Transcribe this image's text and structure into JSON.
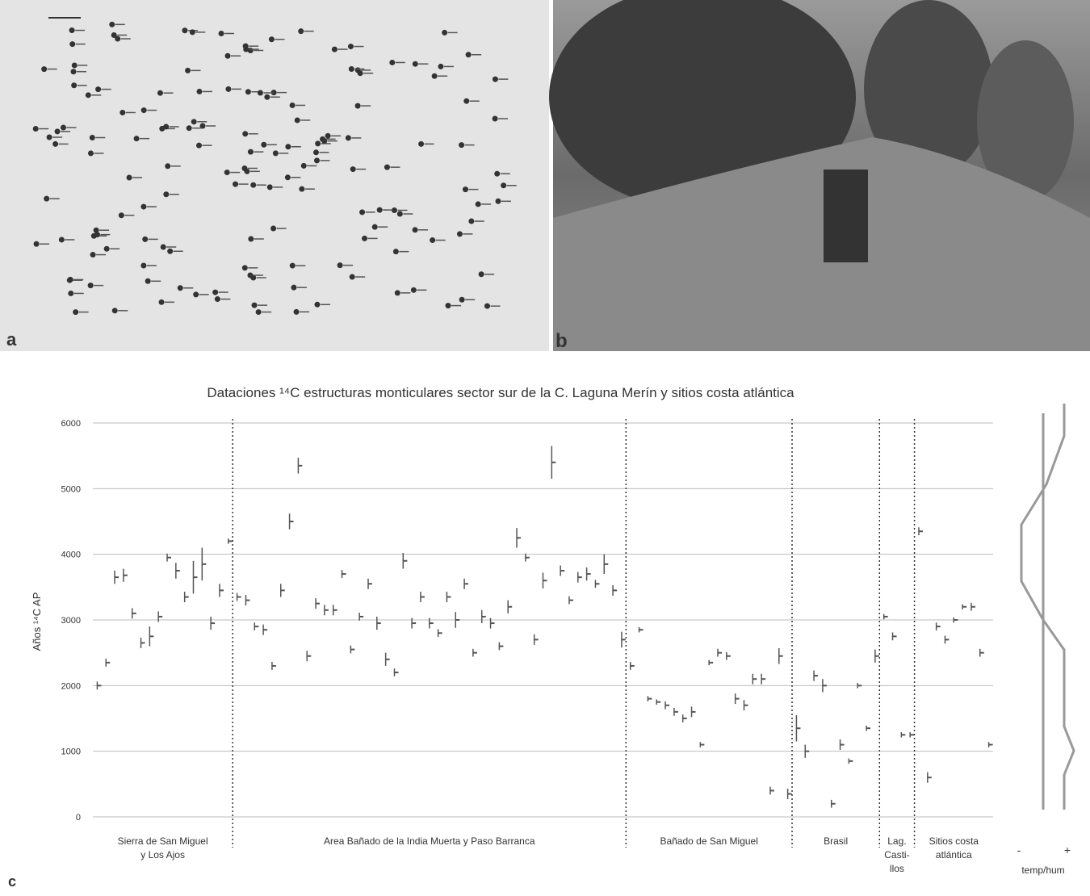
{
  "panels": {
    "a": "a",
    "b": "b",
    "c": "c"
  },
  "chart_data": {
    "type": "errorbar",
    "title": "Dataciones ¹⁴C estructuras monticulares sector sur de la C. Laguna Merín y sitios costa atlántica",
    "y_label": "Años ¹⁴C AP",
    "ylim": [
      0,
      6000
    ],
    "yticks": [
      0,
      1000,
      2000,
      3000,
      4000,
      5000,
      6000
    ],
    "grid": true,
    "series": [
      {
        "name": [
          "Sierra de San Miguel",
          "y Los Ajos"
        ],
        "color": "#555555",
        "values": [
          2000,
          2350,
          3650,
          3680,
          3100,
          2650,
          2750,
          3050,
          3950,
          3750,
          3350,
          3650,
          3850,
          2950,
          3450,
          4200
        ],
        "errors": [
          60,
          60,
          100,
          100,
          80,
          80,
          150,
          80,
          60,
          120,
          80,
          250,
          250,
          100,
          100,
          40
        ]
      },
      {
        "name": [
          "Area Bañado de la India Muerta y Paso Barranca"
        ],
        "color": "#555555",
        "values": [
          3350,
          3300,
          2900,
          2850,
          2300,
          3450,
          4500,
          5350,
          2450,
          3250,
          3150,
          3150,
          3700,
          2550,
          3050,
          3550,
          2950,
          2400,
          2200,
          3900,
          2950,
          3350,
          2950,
          2800,
          3350,
          3000,
          3550,
          2500,
          3050,
          2950,
          2600,
          3200,
          4250,
          3950,
          2700,
          3600,
          5400,
          3750,
          3300,
          3650,
          3700,
          3550,
          3850,
          3450,
          2700
        ],
        "errors": [
          60,
          80,
          60,
          80,
          60,
          100,
          120,
          120,
          80,
          80,
          80,
          80,
          60,
          60,
          60,
          80,
          100,
          100,
          60,
          120,
          80,
          80,
          80,
          60,
          80,
          120,
          80,
          60,
          100,
          80,
          60,
          100,
          150,
          60,
          80,
          120,
          250,
          80,
          60,
          80,
          100,
          60,
          150,
          80,
          120
        ]
      },
      {
        "name": [
          "Bañado de San Miguel"
        ],
        "color": "#555555",
        "values": [
          2300,
          2850,
          1800,
          1750,
          1700,
          1600,
          1500,
          1600,
          1100,
          2350,
          2500,
          2450,
          1800,
          1700,
          2100,
          2100,
          400,
          2450,
          350
        ],
        "errors": [
          60,
          40,
          40,
          40,
          60,
          60,
          60,
          80,
          40,
          40,
          60,
          60,
          80,
          80,
          80,
          80,
          60,
          120,
          80
        ]
      },
      {
        "name": [
          "Brasil"
        ],
        "color": "#555555",
        "values": [
          1350,
          1000,
          2150,
          2000,
          200,
          1100,
          850,
          2000,
          1350,
          2450
        ],
        "errors": [
          200,
          100,
          80,
          100,
          60,
          80,
          40,
          40,
          40,
          100
        ]
      },
      {
        "name": [
          "Lag.",
          "Casti-",
          "llos"
        ],
        "color": "#555555",
        "values": [
          3050,
          2750,
          1250,
          1250
        ],
        "errors": [
          40,
          60,
          40,
          40
        ]
      },
      {
        "name": [
          "Sitios costa",
          "atlántica"
        ],
        "color": "#555555",
        "values": [
          4350,
          600,
          2900,
          2700,
          3000,
          3200,
          3200,
          2500,
          1100
        ],
        "errors": [
          60,
          80,
          60,
          60,
          40,
          40,
          60,
          60,
          40
        ]
      }
    ],
    "side_labels": [
      "-",
      "+",
      "temp/hum"
    ]
  }
}
